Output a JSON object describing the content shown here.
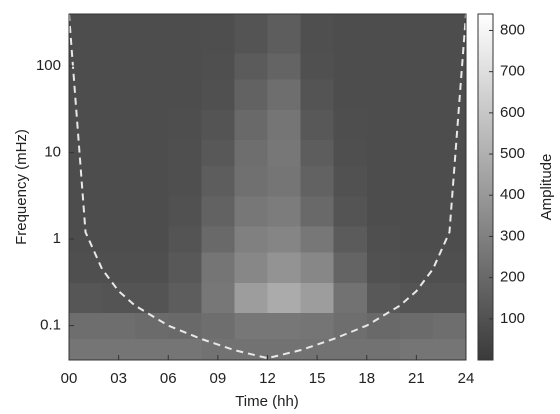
{
  "chart_data": {
    "type": "heatmap",
    "xlabel": "Time (hh)",
    "ylabel": "Frequency (mHz)",
    "colorbar_label": "Amplitude",
    "xlim": [
      0,
      24
    ],
    "xticks": [
      {
        "value": 0,
        "label": "00"
      },
      {
        "value": 3,
        "label": "03"
      },
      {
        "value": 6,
        "label": "06"
      },
      {
        "value": 9,
        "label": "09"
      },
      12,
      15,
      18,
      21,
      24
    ],
    "ylim": [
      0.04,
      400
    ],
    "yticks": [
      0.1,
      1,
      10,
      100
    ],
    "y_log": true,
    "clim": [
      0,
      840
    ],
    "cticks": [
      100,
      200,
      300,
      400,
      500,
      600,
      700,
      800
    ],
    "x": [
      1,
      3,
      5,
      7,
      9,
      11,
      13,
      15,
      17,
      19,
      21,
      23
    ],
    "y": [
      0.05,
      0.1,
      0.2,
      0.5,
      1,
      2,
      5,
      10,
      20,
      50,
      100,
      200
    ],
    "z": [
      [
        250,
        250,
        250,
        250,
        240,
        240,
        240,
        240,
        240,
        240,
        250,
        250
      ],
      [
        220,
        220,
        210,
        200,
        220,
        260,
        260,
        250,
        220,
        200,
        210,
        220
      ],
      [
        120,
        110,
        110,
        150,
        260,
        420,
        480,
        420,
        240,
        130,
        110,
        110
      ],
      [
        90,
        90,
        90,
        130,
        250,
        330,
        380,
        330,
        180,
        100,
        90,
        90
      ],
      [
        80,
        80,
        80,
        110,
        200,
        300,
        320,
        260,
        140,
        90,
        80,
        80
      ],
      [
        80,
        80,
        80,
        100,
        170,
        260,
        280,
        200,
        110,
        80,
        80,
        80
      ],
      [
        80,
        80,
        80,
        90,
        150,
        230,
        250,
        170,
        100,
        80,
        80,
        80
      ],
      [
        80,
        80,
        80,
        90,
        130,
        220,
        260,
        150,
        90,
        80,
        80,
        80
      ],
      [
        80,
        80,
        80,
        85,
        110,
        200,
        250,
        130,
        85,
        80,
        80,
        80
      ],
      [
        80,
        80,
        80,
        80,
        95,
        170,
        220,
        110,
        80,
        80,
        80,
        80
      ],
      [
        80,
        80,
        80,
        80,
        90,
        140,
        180,
        95,
        80,
        80,
        80,
        80
      ],
      [
        80,
        80,
        80,
        80,
        85,
        110,
        150,
        90,
        80,
        80,
        80,
        80
      ]
    ],
    "cone_of_influence": {
      "color": "#e8e8e8",
      "x": [
        0,
        1,
        2,
        3,
        4,
        6,
        8,
        10,
        12,
        14,
        16,
        18,
        20,
        21,
        22,
        23,
        24
      ],
      "y": [
        400,
        1.2,
        0.45,
        0.25,
        0.17,
        0.1,
        0.07,
        0.052,
        0.042,
        0.052,
        0.07,
        0.1,
        0.17,
        0.25,
        0.45,
        1.2,
        400
      ]
    }
  }
}
